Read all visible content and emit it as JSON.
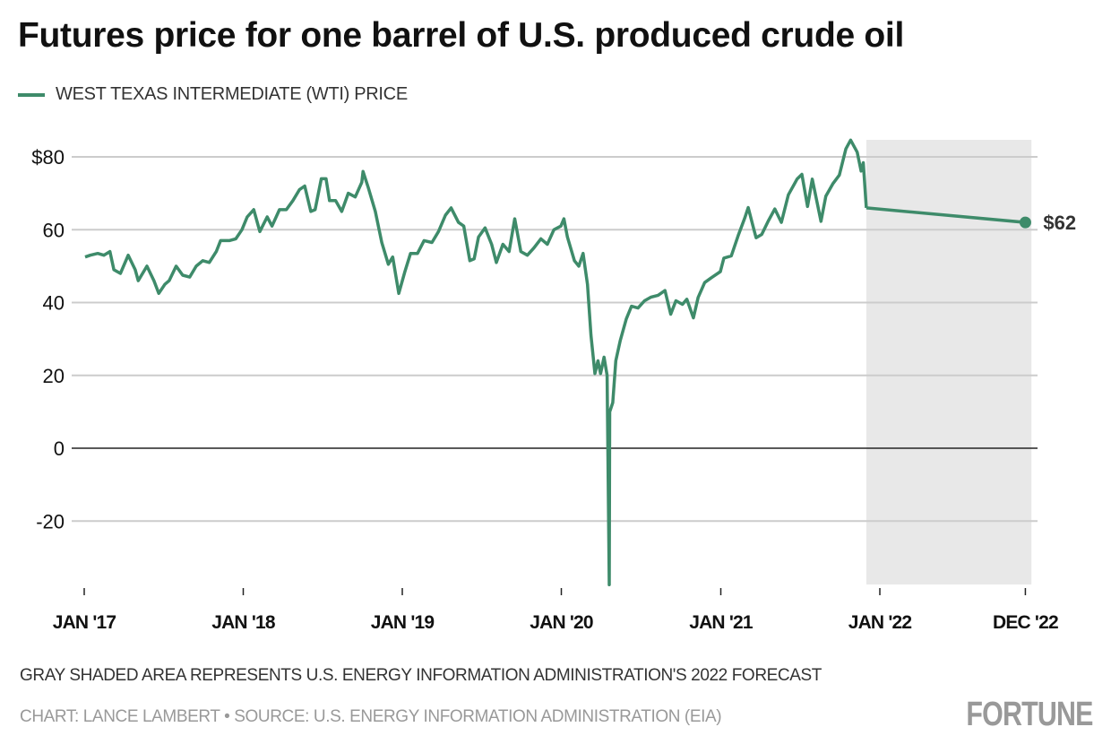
{
  "chart_data": {
    "type": "line",
    "title": "Futures price for one barrel of U.S. produced crude oil",
    "xlabel": "",
    "ylabel": "",
    "ylim": [
      -37.5,
      85
    ],
    "xlim": [
      "2017-01-01",
      "2022-12-01"
    ],
    "grid": true,
    "legend_placement": "top-left",
    "y_ticks": [
      {
        "value": 80,
        "label": "$80"
      },
      {
        "value": 60,
        "label": "60"
      },
      {
        "value": 40,
        "label": "40"
      },
      {
        "value": 20,
        "label": "20"
      },
      {
        "value": 0,
        "label": "0"
      },
      {
        "value": -20,
        "label": "-20"
      }
    ],
    "x_ticks": [
      {
        "value": "2017-01-01",
        "label": "JAN '17"
      },
      {
        "value": "2018-01-01",
        "label": "JAN '18"
      },
      {
        "value": "2019-01-01",
        "label": "JAN '19"
      },
      {
        "value": "2020-01-01",
        "label": "JAN '20"
      },
      {
        "value": "2021-01-01",
        "label": "JAN '21"
      },
      {
        "value": "2022-01-01",
        "label": "JAN '22"
      },
      {
        "value": "2022-12-01",
        "label": "DEC '22"
      }
    ],
    "series": [
      {
        "name": "WEST TEXAS INTERMEDIATE (WTI) PRICE",
        "color": "#3e8b6a",
        "points": [
          [
            "2017-01-03",
            52.5
          ],
          [
            "2017-01-15",
            53
          ],
          [
            "2017-02-01",
            53.5
          ],
          [
            "2017-02-15",
            53
          ],
          [
            "2017-03-01",
            54
          ],
          [
            "2017-03-10",
            49
          ],
          [
            "2017-03-25",
            48
          ],
          [
            "2017-04-12",
            53
          ],
          [
            "2017-04-28",
            49
          ],
          [
            "2017-05-05",
            46
          ],
          [
            "2017-05-25",
            50
          ],
          [
            "2017-06-10",
            46
          ],
          [
            "2017-06-21",
            42.5
          ],
          [
            "2017-07-05",
            45
          ],
          [
            "2017-07-15",
            46
          ],
          [
            "2017-07-31",
            50
          ],
          [
            "2017-08-15",
            47.5
          ],
          [
            "2017-08-31",
            47
          ],
          [
            "2017-09-15",
            50
          ],
          [
            "2017-09-30",
            51.5
          ],
          [
            "2017-10-15",
            51
          ],
          [
            "2017-10-31",
            54
          ],
          [
            "2017-11-10",
            57
          ],
          [
            "2017-11-30",
            57
          ],
          [
            "2017-12-15",
            57.5
          ],
          [
            "2017-12-29",
            60
          ],
          [
            "2018-01-10",
            63.5
          ],
          [
            "2018-01-25",
            65.5
          ],
          [
            "2018-02-08",
            59.5
          ],
          [
            "2018-02-25",
            63.5
          ],
          [
            "2018-03-08",
            61
          ],
          [
            "2018-03-25",
            65.5
          ],
          [
            "2018-04-10",
            65.5
          ],
          [
            "2018-04-25",
            68
          ],
          [
            "2018-05-10",
            71
          ],
          [
            "2018-05-22",
            72
          ],
          [
            "2018-06-05",
            65
          ],
          [
            "2018-06-15",
            65.5
          ],
          [
            "2018-06-29",
            74
          ],
          [
            "2018-07-10",
            74
          ],
          [
            "2018-07-18",
            68
          ],
          [
            "2018-08-01",
            68
          ],
          [
            "2018-08-15",
            65
          ],
          [
            "2018-08-30",
            70
          ],
          [
            "2018-09-15",
            69
          ],
          [
            "2018-09-30",
            73
          ],
          [
            "2018-10-03",
            76
          ],
          [
            "2018-10-15",
            71.5
          ],
          [
            "2018-10-31",
            65
          ],
          [
            "2018-11-15",
            56.5
          ],
          [
            "2018-11-30",
            50.5
          ],
          [
            "2018-12-10",
            52.5
          ],
          [
            "2018-12-24",
            42.5
          ],
          [
            "2019-01-07",
            48.5
          ],
          [
            "2019-01-20",
            53.5
          ],
          [
            "2019-02-05",
            53.5
          ],
          [
            "2019-02-20",
            57
          ],
          [
            "2019-03-10",
            56.5
          ],
          [
            "2019-03-25",
            59.5
          ],
          [
            "2019-04-10",
            64
          ],
          [
            "2019-04-23",
            66
          ],
          [
            "2019-05-10",
            62
          ],
          [
            "2019-05-22",
            61
          ],
          [
            "2019-06-05",
            51.5
          ],
          [
            "2019-06-15",
            52
          ],
          [
            "2019-06-25",
            58
          ],
          [
            "2019-07-10",
            60.5
          ],
          [
            "2019-07-25",
            56
          ],
          [
            "2019-08-05",
            51
          ],
          [
            "2019-08-20",
            56
          ],
          [
            "2019-09-03",
            54
          ],
          [
            "2019-09-16",
            63
          ],
          [
            "2019-09-30",
            54
          ],
          [
            "2019-10-15",
            53
          ],
          [
            "2019-10-30",
            55
          ],
          [
            "2019-11-15",
            57.5
          ],
          [
            "2019-11-30",
            56
          ],
          [
            "2019-12-15",
            60
          ],
          [
            "2019-12-31",
            61
          ],
          [
            "2020-01-07",
            63
          ],
          [
            "2020-01-15",
            58
          ],
          [
            "2020-01-31",
            51.5
          ],
          [
            "2020-02-10",
            50
          ],
          [
            "2020-02-20",
            53.5
          ],
          [
            "2020-03-01",
            45
          ],
          [
            "2020-03-09",
            31
          ],
          [
            "2020-03-18",
            20.5
          ],
          [
            "2020-03-25",
            24
          ],
          [
            "2020-03-31",
            20.5
          ],
          [
            "2020-04-08",
            25
          ],
          [
            "2020-04-15",
            20
          ],
          [
            "2020-04-20",
            -37.5
          ],
          [
            "2020-04-21",
            10
          ],
          [
            "2020-04-28",
            12.5
          ],
          [
            "2020-05-05",
            24
          ],
          [
            "2020-05-15",
            29.5
          ],
          [
            "2020-05-29",
            35.5
          ],
          [
            "2020-06-10",
            39
          ],
          [
            "2020-06-25",
            38.5
          ],
          [
            "2020-07-10",
            40.5
          ],
          [
            "2020-07-25",
            41.5
          ],
          [
            "2020-08-10",
            42
          ],
          [
            "2020-08-26",
            43.3
          ],
          [
            "2020-09-08",
            36.8
          ],
          [
            "2020-09-20",
            40.5
          ],
          [
            "2020-10-05",
            39.5
          ],
          [
            "2020-10-15",
            40.9
          ],
          [
            "2020-10-30",
            35.8
          ],
          [
            "2020-11-10",
            41.4
          ],
          [
            "2020-11-25",
            45.5
          ],
          [
            "2020-12-10",
            46.8
          ],
          [
            "2020-12-31",
            48.5
          ],
          [
            "2021-01-08",
            52.2
          ],
          [
            "2021-01-25",
            52.8
          ],
          [
            "2021-02-10",
            58.4
          ],
          [
            "2021-02-25",
            63.2
          ],
          [
            "2021-03-05",
            66.1
          ],
          [
            "2021-03-18",
            60
          ],
          [
            "2021-03-23",
            57.8
          ],
          [
            "2021-04-05",
            58.7
          ],
          [
            "2021-04-20",
            62.4
          ],
          [
            "2021-05-05",
            65.7
          ],
          [
            "2021-05-20",
            62
          ],
          [
            "2021-06-05",
            69.6
          ],
          [
            "2021-06-25",
            73.9
          ],
          [
            "2021-07-06",
            75.2
          ],
          [
            "2021-07-19",
            66.4
          ],
          [
            "2021-07-30",
            73.9
          ],
          [
            "2021-08-19",
            62.3
          ],
          [
            "2021-08-30",
            69.2
          ],
          [
            "2021-09-15",
            72.6
          ],
          [
            "2021-09-30",
            75
          ],
          [
            "2021-10-15",
            82.2
          ],
          [
            "2021-10-26",
            84.6
          ],
          [
            "2021-11-10",
            81.3
          ],
          [
            "2021-11-19",
            76.1
          ],
          [
            "2021-11-24",
            78.4
          ],
          [
            "2021-12-01",
            66
          ]
        ]
      },
      {
        "name": "EIA 2022 forecast",
        "color": "#3e8b6a",
        "points": [
          [
            "2021-12-01",
            66
          ],
          [
            "2022-12-01",
            62
          ]
        ]
      }
    ],
    "forecast_region": {
      "start": "2021-12-01",
      "end": "2022-12-15",
      "color": "#e8e8e8"
    },
    "end_label": "$62",
    "zero_line_color": "#222222",
    "grid_color": "#cccccc"
  },
  "legend": {
    "label": "WEST TEXAS INTERMEDIATE (WTI) PRICE"
  },
  "footnote": "GRAY SHADED AREA REPRESENTS U.S. ENERGY INFORMATION ADMINISTRATION'S 2022 FORECAST",
  "credit": "CHART: LANCE LAMBERT • SOURCE: U.S. ENERGY INFORMATION ADMINISTRATION (EIA)",
  "logo": "FORTUNE"
}
